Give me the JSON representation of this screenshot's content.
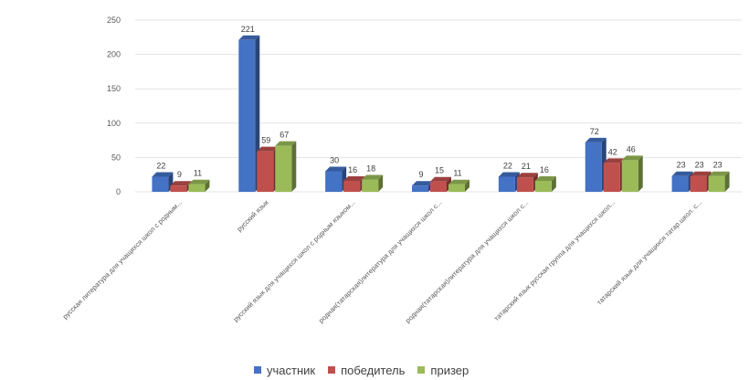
{
  "chart_data": {
    "type": "bar",
    "categories": [
      "русская литература для учащихся школ с родным...",
      "русский язык",
      "русский язык для учащихся школ с родным языком...",
      "родная(татарская)литература для учащихся школ с...",
      "родная(татарская)литература для учащихся школ с...",
      "татарский язык русская группа для учащихся школ...",
      "татарский язык для учащихся татар.школ. с..."
    ],
    "series": [
      {
        "name": "участник",
        "color": "#4472C4",
        "values": [
          22,
          221,
          30,
          9,
          22,
          72,
          23
        ]
      },
      {
        "name": "победитель",
        "color": "#C0504D",
        "values": [
          9,
          59,
          16,
          15,
          21,
          42,
          23
        ]
      },
      {
        "name": "призер",
        "color": "#9BBB59",
        "values": [
          11,
          67,
          18,
          11,
          16,
          46,
          23
        ]
      }
    ],
    "ylim": [
      0,
      250
    ],
    "yticks": [
      "0",
      "50",
      "100",
      "150",
      "200",
      "250"
    ],
    "grid": true,
    "legend_position": "bottom"
  }
}
